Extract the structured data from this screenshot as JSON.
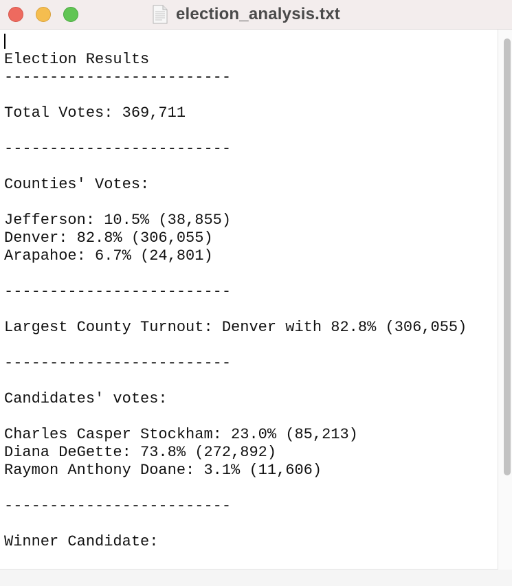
{
  "window": {
    "title": "election_analysis.txt",
    "file_icon": "text-document-icon"
  },
  "titlebar": {
    "buttons": [
      "close",
      "minimize",
      "zoom"
    ],
    "colors": {
      "close": "#ee6a5f",
      "minimize": "#f5bd4f",
      "zoom": "#61c554"
    }
  },
  "document": {
    "lines": [
      "Election Results",
      "-------------------------",
      "",
      "Total Votes: 369,711",
      "",
      "-------------------------",
      "",
      "Counties' Votes:",
      "",
      "Jefferson: 10.5% (38,855)",
      "Denver: 82.8% (306,055)",
      "Arapahoe: 6.7% (24,801)",
      "",
      "-------------------------",
      "",
      "Largest County Turnout: Denver with 82.8% (306,055)",
      "",
      "-------------------------",
      "",
      "Candidates' votes:",
      "",
      "Charles Casper Stockham: 23.0% (85,213)",
      "Diana DeGette: 73.8% (272,892)",
      "Raymon Anthony Doane: 3.1% (11,606)",
      "",
      "-------------------------",
      "",
      "Winner Candidate:"
    ]
  }
}
